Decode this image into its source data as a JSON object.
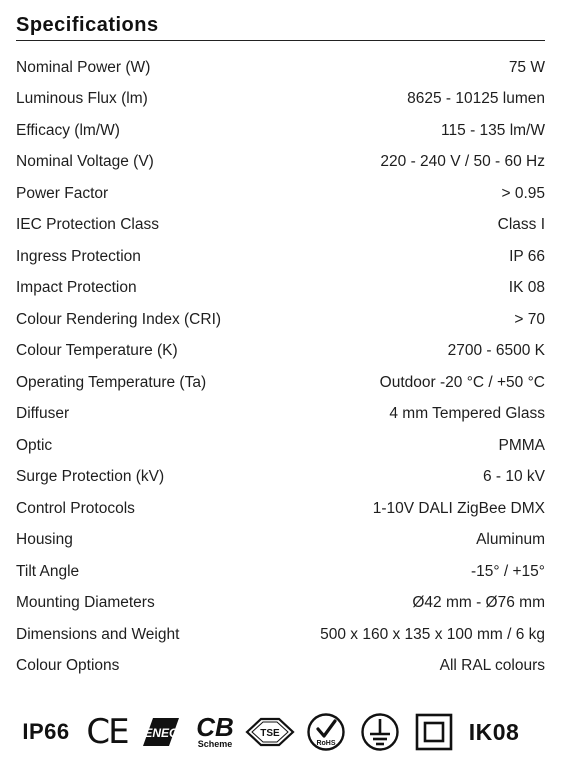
{
  "title": "Specifications",
  "specs": [
    {
      "label": "Nominal Power (W)",
      "value": "75 W"
    },
    {
      "label": "Luminous Flux (lm)",
      "value": "8625 - 10125 lumen"
    },
    {
      "label": "Efficacy (lm/W)",
      "value": "115 - 135 lm/W"
    },
    {
      "label": "Nominal Voltage (V)",
      "value": "220 - 240 V / 50 - 60 Hz"
    },
    {
      "label": "Power Factor",
      "value": "> 0.95"
    },
    {
      "label": "IEC Protection Class",
      "value": "Class I"
    },
    {
      "label": "Ingress Protection",
      "value": "IP 66"
    },
    {
      "label": "Impact Protection",
      "value": "IK 08"
    },
    {
      "label": "Colour Rendering Index (CRI)",
      "value": "> 70"
    },
    {
      "label": "Colour Temperature (K)",
      "value": "2700 - 6500 K"
    },
    {
      "label": "Operating Temperature (Ta)",
      "value": "Outdoor -20 °C / +50 °C"
    },
    {
      "label": "Diffuser",
      "value": "4 mm Tempered Glass"
    },
    {
      "label": "Optic",
      "value": "PMMA"
    },
    {
      "label": "Surge Protection (kV)",
      "value": "6 - 10 kV"
    },
    {
      "label": "Control Protocols",
      "value": "1-10V DALI ZigBee DMX"
    },
    {
      "label": "Housing",
      "value": "Aluminum"
    },
    {
      "label": "Tilt Angle",
      "value": "-15° / +15°"
    },
    {
      "label": "Mounting Diameters",
      "value": "Ø42 mm - Ø76 mm"
    },
    {
      "label": "Dimensions and Weight",
      "value": "500 x 160 x 135 x 100 mm / 6 kg"
    },
    {
      "label": "Colour Options",
      "value": "All RAL colours"
    }
  ],
  "certifications": {
    "ip": "IP66",
    "ce": "CE",
    "enec": "ENEC",
    "cb": "CB",
    "cb_sub": "Scheme",
    "tse": "TSE",
    "rohs": "RoHS",
    "ik": "IK08"
  }
}
